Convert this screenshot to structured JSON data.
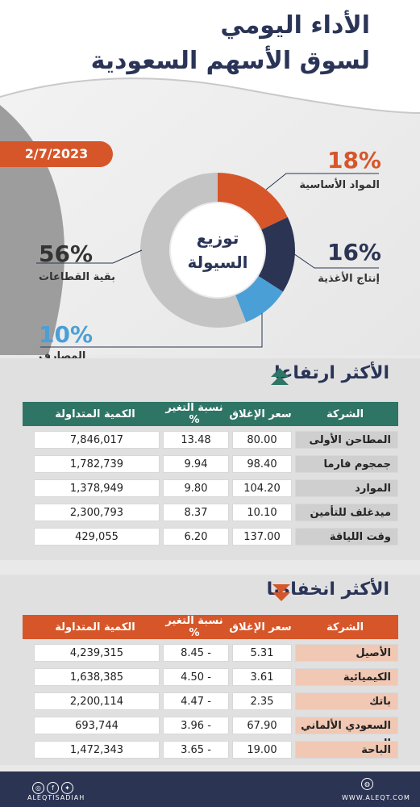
{
  "header": {
    "title_line1": "الأداء اليومي",
    "title_line2": "لسوق الأسهم السعودية",
    "date": "2/7/2023"
  },
  "donut": {
    "center_line1": "توزيع",
    "center_line2": "السيولة",
    "segments": [
      {
        "pct_text": "18%",
        "label": "المواد الأساسية",
        "value": 18,
        "color": "#d6562a"
      },
      {
        "pct_text": "16%",
        "label": "إنتاج الأغذية",
        "value": 16,
        "color": "#2b3453"
      },
      {
        "pct_text": "10%",
        "label": "المصارف",
        "value": 10,
        "color": "#4a9fd6"
      },
      {
        "pct_text": "56%",
        "label": "بقية القطاعات",
        "value": 56,
        "color": "#c4c4c4"
      }
    ]
  },
  "rising": {
    "title": "الأكثر ارتفاعا",
    "header_color": "#2e7566",
    "name_bg": "#cfcfcf",
    "columns": [
      "الشركة",
      "سعر الإغلاق",
      "نسبة التغير %",
      "الكمية المتداولة"
    ],
    "rows": [
      [
        "المطاحن الأولى",
        "80.00",
        "13.48",
        "7,846,017"
      ],
      [
        "جمجوم فارما",
        "98.40",
        "9.94",
        "1,782,739"
      ],
      [
        "الموارد",
        "104.20",
        "9.80",
        "1,378,949"
      ],
      [
        "ميدغلف للتأمين",
        "10.10",
        "8.37",
        "2,300,793"
      ],
      [
        "وقت اللياقة",
        "137.00",
        "6.20",
        "429,055"
      ]
    ]
  },
  "falling": {
    "title": "الأكثر انخفاضا",
    "header_color": "#d6562a",
    "name_bg": "#f0c8b4",
    "columns": [
      "الشركة",
      "سعر الإغلاق",
      "نسبة التغير %",
      "الكمية المتداولة"
    ],
    "rows": [
      [
        "الأصيل",
        "5.31",
        "- 8.45",
        "4,239,315"
      ],
      [
        "الكيميائية",
        "3.61",
        "- 4.50",
        "1,638,385"
      ],
      [
        "باتك",
        "2.35",
        "- 4.47",
        "2,200,114"
      ],
      [
        "السعودي الألماني الصحية",
        "67.90",
        "- 3.96",
        "693,744"
      ],
      [
        "الباحة",
        "19.00",
        "- 3.65",
        "1,472,343"
      ]
    ]
  },
  "footer": {
    "left_handle": "ALEQTISADIAH",
    "right_site": "WWW.ALEQT.COM"
  },
  "icons": {
    "social": [
      "instagram-icon",
      "facebook-icon",
      "twitter-icon"
    ],
    "web": "globe-icon"
  }
}
